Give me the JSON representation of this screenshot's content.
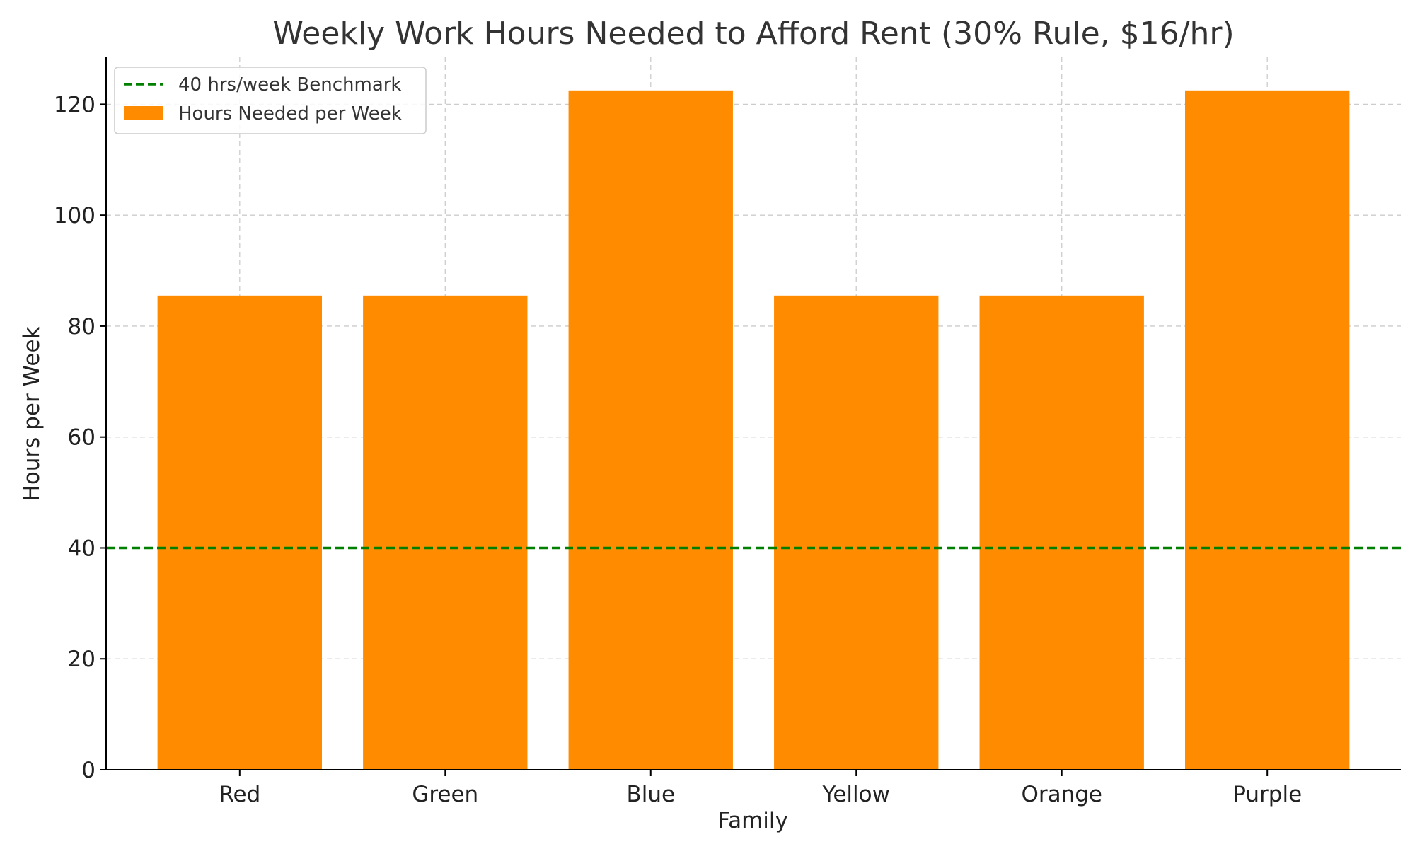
{
  "chart_data": {
    "type": "bar",
    "title": "Weekly Work Hours Needed to Afford Rent (30% Rule, $16/hr)",
    "xlabel": "Family",
    "ylabel": "Hours per Week",
    "categories": [
      "Red",
      "Green",
      "Blue",
      "Yellow",
      "Orange",
      "Purple"
    ],
    "series": [
      {
        "name": "Hours Needed per Week",
        "values": [
          85.5,
          85.5,
          122.5,
          85.5,
          85.5,
          122.5
        ],
        "color": "#ff8c00"
      }
    ],
    "reference_lines": [
      {
        "name": "40 hrs/week Benchmark",
        "value": 40,
        "color": "#008000",
        "style": "dashed"
      }
    ],
    "ylim": [
      0,
      128.6
    ],
    "yticks": [
      0,
      20,
      40,
      60,
      80,
      100,
      120
    ],
    "grid": true,
    "legend_position": "top-left"
  }
}
